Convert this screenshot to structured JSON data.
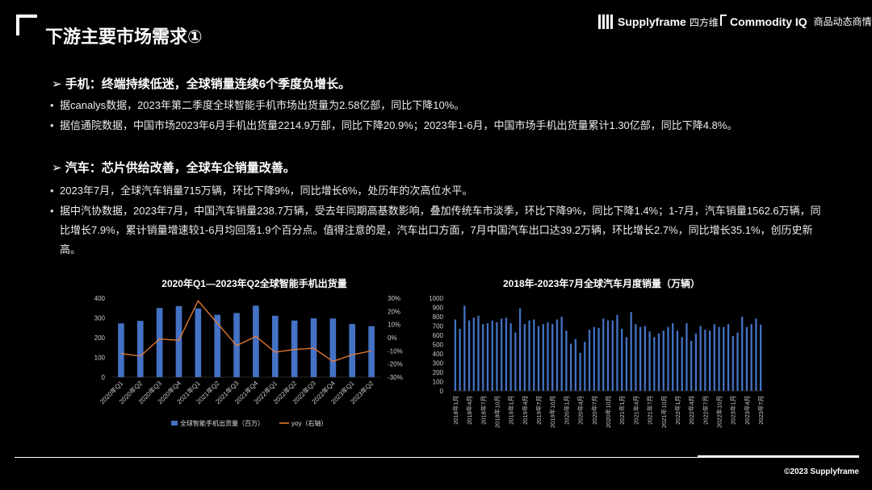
{
  "header": {
    "title": "下游主要市场需求①",
    "brand_supplyframe": "Supplyframe",
    "brand_supplyframe_cn": "四方维",
    "brand_ciq": "Commodity IQ",
    "brand_ciq_cn": "商品动态商情"
  },
  "sections": [
    {
      "heading": "➢  手机：终端持续低迷，全球销量连续6个季度负增长。",
      "bullets": [
        "据canalys数据，2023年第二季度全球智能手机市场出货量为2.58亿部，同比下降10%。",
        "据信通院数据，中国市场2023年6月手机出货量2214.9万部，同比下降20.9%；2023年1-6月，中国市场手机出货量累计1.30亿部，同比下降4.8%。"
      ]
    },
    {
      "heading": "➢  汽车：芯片供给改善，全球车企销量改善。",
      "bullets": [
        "2023年7月，全球汽车销量715万辆，环比下降9%，同比增长6%，处历年的次高位水平。",
        "据中汽协数据，2023年7月，中国汽车销量238.7万辆，受去年同期高基数影响，叠加传统车市淡季，环比下降9%，同比下降1.4%；1-7月，汽车销量1562.6万辆，同比增长7.9%，累计销量增速较1-6月均回落1.9个百分点。值得注意的是，汽车出口方面，7月中国汽车出口达39.2万辆，环比增长2.7%，同比增长35.1%，创历史新高。"
      ]
    }
  ],
  "chart_data": [
    {
      "type": "bar",
      "title": "2020年Q1—2023年Q2全球智能手机出货量",
      "categories": [
        "2020年Q1",
        "2020年Q2",
        "2020年Q3",
        "2020年Q4",
        "2021年Q1",
        "2021年Q2",
        "2021年Q3",
        "2021年Q4",
        "2022年Q1",
        "2022年Q2",
        "2022年Q3",
        "2022年Q4",
        "2023年Q1",
        "2023年Q2"
      ],
      "series": [
        {
          "name": "全球智能手机出货量（百万）",
          "type": "bar",
          "axis": "left",
          "color": "#4472C4",
          "values": [
            272,
            285,
            350,
            360,
            348,
            316,
            325,
            362,
            311,
            287,
            298,
            297,
            269,
            258
          ]
        },
        {
          "name": "yoy（右轴）",
          "type": "line",
          "axis": "right",
          "color": "#ED7D31",
          "values": [
            -12,
            -14,
            -1,
            -2,
            28,
            11,
            -6,
            1,
            -11,
            -9,
            -8,
            -18,
            -13,
            -10
          ]
        }
      ],
      "yticks_left": [
        "0",
        "100",
        "200",
        "300",
        "400"
      ],
      "yticks_right": [
        "-30%",
        "-20%",
        "-10%",
        "0%",
        "10%",
        "20%",
        "30%"
      ],
      "ylim_left": [
        0,
        400
      ],
      "ylim_right": [
        -30,
        30
      ],
      "legend_position": "bottom"
    },
    {
      "type": "bar",
      "title": "2018年-2023年7月全球汽车月度销量（万辆）",
      "x_labels": [
        "2018年1月",
        "2018年4月",
        "2018年7月",
        "2018年10月",
        "2019年1月",
        "2019年4月",
        "2019年7月",
        "2019年10月",
        "2020年1月",
        "2020年4月",
        "2020年7月",
        "2020年10月",
        "2021年1月",
        "2021年4月",
        "2021年7月",
        "2021年10月",
        "2022年1月",
        "2022年4月",
        "2022年7月",
        "2022年10月",
        "2023年1月",
        "2023年4月",
        "2023年7月"
      ],
      "series": [
        {
          "name": "",
          "color": "#4472C4",
          "values": [
            770,
            670,
            920,
            760,
            790,
            810,
            720,
            730,
            760,
            740,
            780,
            790,
            730,
            630,
            890,
            720,
            760,
            770,
            700,
            720,
            740,
            720,
            770,
            800,
            650,
            510,
            560,
            410,
            530,
            660,
            690,
            680,
            780,
            760,
            760,
            820,
            670,
            580,
            850,
            720,
            690,
            700,
            640,
            580,
            620,
            650,
            690,
            730,
            650,
            580,
            730,
            540,
            620,
            700,
            660,
            650,
            720,
            690,
            690,
            720,
            590,
            630,
            800,
            690,
            720,
            780,
            715
          ]
        }
      ],
      "yticks": [
        "0",
        "100",
        "200",
        "300",
        "400",
        "500",
        "600",
        "700",
        "800",
        "900",
        "1000"
      ],
      "ylim": [
        0,
        1000
      ]
    }
  ],
  "footer": "©2023 Supplyframe"
}
